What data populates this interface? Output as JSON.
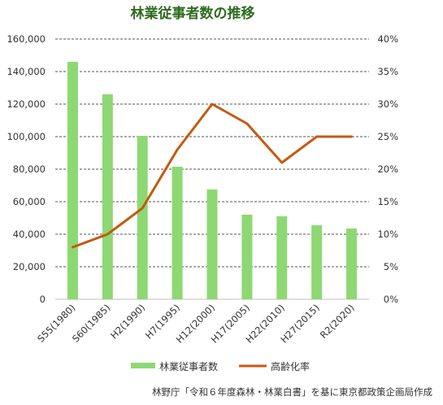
{
  "chart_data": {
    "type": "bar",
    "title": "林業従事者数の推移",
    "categories": [
      "S55(1980)",
      "S60(1985)",
      "H2(1990)",
      "H7(1995)",
      "H12(2000)",
      "H17(2005)",
      "H22(2010)",
      "H27(2015)",
      "R2(2020)"
    ],
    "series": [
      {
        "name": "林業従事者数",
        "type": "bar",
        "axis": "left",
        "color": "#8ed873",
        "values": [
          146000,
          126000,
          100500,
          81500,
          67500,
          52000,
          51000,
          45500,
          43500
        ]
      },
      {
        "name": "高齢化率",
        "type": "line",
        "axis": "right",
        "color": "#c55a11",
        "values": [
          8,
          10,
          14,
          23,
          30,
          27,
          21,
          25,
          25
        ]
      }
    ],
    "ylim_left": [
      0,
      160000
    ],
    "yticks_left": [
      "0",
      "20,000",
      "40,000",
      "60,000",
      "80,000",
      "100,000",
      "120,000",
      "140,000",
      "160,000"
    ],
    "ylim_right": [
      0,
      40
    ],
    "yticks_right": [
      "0%",
      "5%",
      "10%",
      "15%",
      "20%",
      "25%",
      "30%",
      "35%",
      "40%"
    ],
    "grid": "horizontal-dashed",
    "legend_position": "bottom"
  },
  "source_note": "林野庁「令和６年度森林・林業白書」を基に東京都政策企画局作成"
}
